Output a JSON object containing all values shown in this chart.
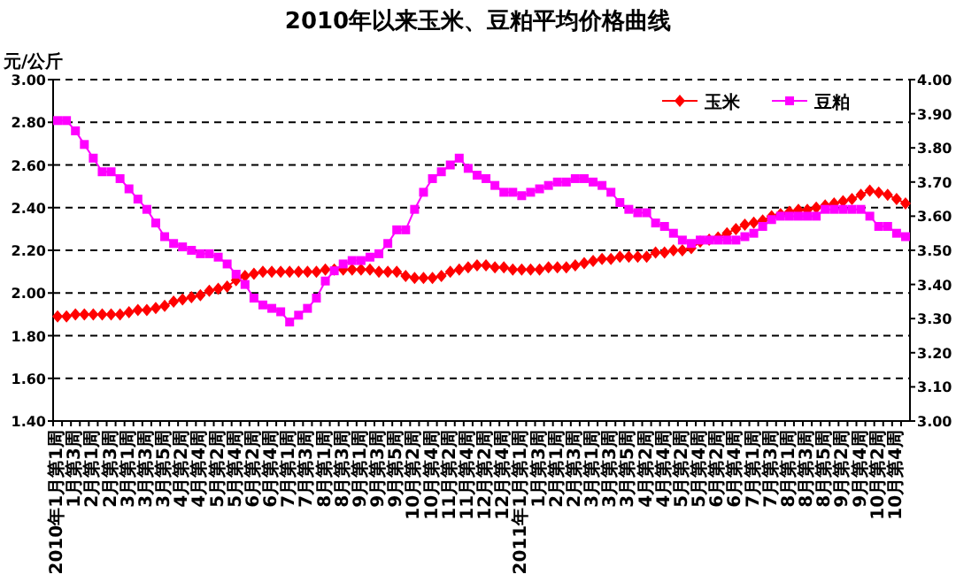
{
  "chart_data": {
    "type": "line",
    "title": "2010年以来玉米、豆粕平均价格曲线",
    "ylabel": "元/公斤",
    "categories": [
      "2010年1月第1周",
      null,
      "1月第3周",
      null,
      "2月第1周",
      null,
      "2月第3周",
      null,
      "3月第1周",
      null,
      "3月第3周",
      null,
      "3月第5周",
      null,
      "4月第2周",
      null,
      "4月第4周",
      null,
      "5月第2周",
      null,
      "5月第4周",
      null,
      "6月第2周",
      null,
      "6月第4周",
      null,
      "7月第1周",
      null,
      "7月第3周",
      null,
      "8月第1周",
      null,
      "8月第3周",
      null,
      "9月第1周",
      null,
      "9月第3周",
      null,
      "9月第5周",
      null,
      "10月第2周",
      null,
      "10月第4周",
      null,
      "11月第2周",
      null,
      "11月第4周",
      null,
      "12月第2周",
      null,
      "12月第4周",
      null,
      "2011年1月第1周",
      null,
      "1月第3周",
      null,
      "2月第1周",
      null,
      "2月第3周",
      null,
      "3月第1周",
      null,
      "3月第3周",
      null,
      "3月第5周",
      null,
      "4月第2周",
      null,
      "4月第4周",
      null,
      "5月第2周",
      null,
      "5月第4周",
      null,
      "6月第2周",
      null,
      "6月第4周",
      null,
      "7月第1周",
      null,
      "7月第3周",
      null,
      "8月第1周",
      null,
      "8月第3周",
      null,
      "8月第5周",
      null,
      "9月第2周",
      null,
      "9月第4周",
      null,
      "10月第2周",
      null,
      "10月第4周",
      null
    ],
    "series": [
      {
        "name": "玉米",
        "color": "#ff0000",
        "marker": "diamond",
        "values": [
          1.89,
          1.89,
          1.9,
          1.9,
          1.9,
          1.9,
          1.9,
          1.9,
          1.91,
          1.92,
          1.92,
          1.93,
          1.94,
          1.96,
          1.97,
          1.98,
          1.99,
          2.01,
          2.02,
          2.03,
          2.06,
          2.08,
          2.09,
          2.1,
          2.1,
          2.1,
          2.1,
          2.1,
          2.1,
          2.1,
          2.11,
          2.11,
          2.11,
          2.11,
          2.11,
          2.11,
          2.1,
          2.1,
          2.1,
          2.08,
          2.07,
          2.07,
          2.07,
          2.08,
          2.1,
          2.11,
          2.12,
          2.13,
          2.13,
          2.12,
          2.12,
          2.11,
          2.11,
          2.11,
          2.11,
          2.12,
          2.12,
          2.12,
          2.13,
          2.14,
          2.15,
          2.16,
          2.16,
          2.17,
          2.17,
          2.17,
          2.17,
          2.19,
          2.19,
          2.2,
          2.2,
          2.21,
          2.24,
          2.25,
          2.26,
          2.28,
          2.3,
          2.32,
          2.33,
          2.34,
          2.36,
          2.37,
          2.38,
          2.39,
          2.39,
          2.4,
          2.41,
          2.42,
          2.43,
          2.44,
          2.46,
          2.48,
          2.47,
          2.46,
          2.44,
          2.42
        ]
      },
      {
        "name": "豆粕",
        "color": "#ff00ff",
        "marker": "square",
        "axis": "y2",
        "values": [
          3.88,
          3.88,
          3.85,
          3.81,
          3.77,
          3.73,
          3.73,
          3.71,
          3.68,
          3.65,
          3.62,
          3.58,
          3.54,
          3.52,
          3.51,
          3.5,
          3.49,
          3.49,
          3.48,
          3.46,
          3.43,
          3.4,
          3.36,
          3.34,
          3.33,
          3.32,
          3.29,
          3.31,
          3.33,
          3.36,
          3.41,
          3.44,
          3.46,
          3.47,
          3.47,
          3.48,
          3.49,
          3.52,
          3.56,
          3.56,
          3.62,
          3.67,
          3.71,
          3.73,
          3.75,
          3.77,
          3.74,
          3.72,
          3.71,
          3.69,
          3.67,
          3.67,
          3.66,
          3.67,
          3.68,
          3.69,
          3.7,
          3.7,
          3.71,
          3.71,
          3.7,
          3.69,
          3.67,
          3.64,
          3.62,
          3.61,
          3.61,
          3.58,
          3.57,
          3.55,
          3.53,
          3.52,
          3.53,
          3.53,
          3.53,
          3.53,
          3.53,
          3.54,
          3.55,
          3.57,
          3.59,
          3.6,
          3.6,
          3.6,
          3.6,
          3.6,
          3.62,
          3.62,
          3.62,
          3.62,
          3.62,
          3.6,
          3.57,
          3.57,
          3.55,
          3.54
        ]
      }
    ],
    "ylim": [
      1.4,
      3.0
    ],
    "yticks": [
      {
        "value": 1.4,
        "label": "1.40"
      },
      {
        "value": 1.6,
        "label": "1.60"
      },
      {
        "value": 1.8,
        "label": "1.80"
      },
      {
        "value": 2.0,
        "label": "2.00"
      },
      {
        "value": 2.2,
        "label": "2.20"
      },
      {
        "value": 2.4,
        "label": "2.40"
      },
      {
        "value": 2.6,
        "label": "2.60"
      },
      {
        "value": 2.8,
        "label": "2.80"
      },
      {
        "value": 3.0,
        "label": "3.00"
      }
    ],
    "y2lim": [
      3.0,
      4.0
    ],
    "y2ticks": [
      {
        "value": 3.0,
        "label": "3.00"
      },
      {
        "value": 3.1,
        "label": "3.10"
      },
      {
        "value": 3.2,
        "label": "3.20"
      },
      {
        "value": 3.3,
        "label": "3.30"
      },
      {
        "value": 3.4,
        "label": "3.40"
      },
      {
        "value": 3.5,
        "label": "3.50"
      },
      {
        "value": 3.6,
        "label": "3.60"
      },
      {
        "value": 3.7,
        "label": "3.70"
      },
      {
        "value": 3.8,
        "label": "3.80"
      },
      {
        "value": 3.9,
        "label": "3.90"
      },
      {
        "value": 4.0,
        "label": "4.00"
      }
    ],
    "grid": "y",
    "legend": "top right"
  }
}
